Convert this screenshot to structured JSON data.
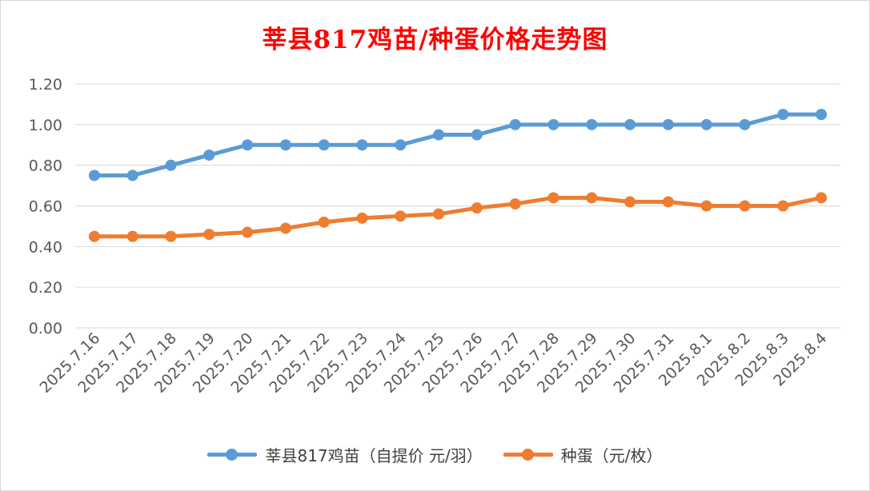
{
  "chart_data": {
    "type": "line",
    "title": "莘县817鸡苗/种蛋价格走势图",
    "categories": [
      "2025.7.16",
      "2025.7.17",
      "2025.7.18",
      "2025.7.19",
      "2025.7.20",
      "2025.7.21",
      "2025.7.22",
      "2025.7.23",
      "2025.7.24",
      "2025.7.25",
      "2025.7.26",
      "2025.7.27",
      "2025.7.28",
      "2025.7.29",
      "2025.7.30",
      "2025.7.31",
      "2025.8.1",
      "2025.8.2",
      "2025.8.3",
      "2025.8.4"
    ],
    "series": [
      {
        "name": "莘县817鸡苗（自提价 元/羽）",
        "color": "#5b9bd5",
        "values": [
          0.75,
          0.75,
          0.8,
          0.85,
          0.9,
          0.9,
          0.9,
          0.9,
          0.9,
          0.95,
          0.95,
          1.0,
          1.0,
          1.0,
          1.0,
          1.0,
          1.0,
          1.0,
          1.05,
          1.05
        ]
      },
      {
        "name": "种蛋（元/枚）",
        "color": "#ed7d31",
        "values": [
          0.45,
          0.45,
          0.45,
          0.46,
          0.47,
          0.49,
          0.52,
          0.54,
          0.55,
          0.56,
          0.59,
          0.61,
          0.64,
          0.64,
          0.62,
          0.62,
          0.6,
          0.6,
          0.6,
          0.64
        ]
      }
    ],
    "yticks": [
      "0.00",
      "0.20",
      "0.40",
      "0.60",
      "0.80",
      "1.00",
      "1.20"
    ],
    "ylim": [
      0,
      1.2
    ],
    "grid": true,
    "legend_position": "bottom"
  }
}
